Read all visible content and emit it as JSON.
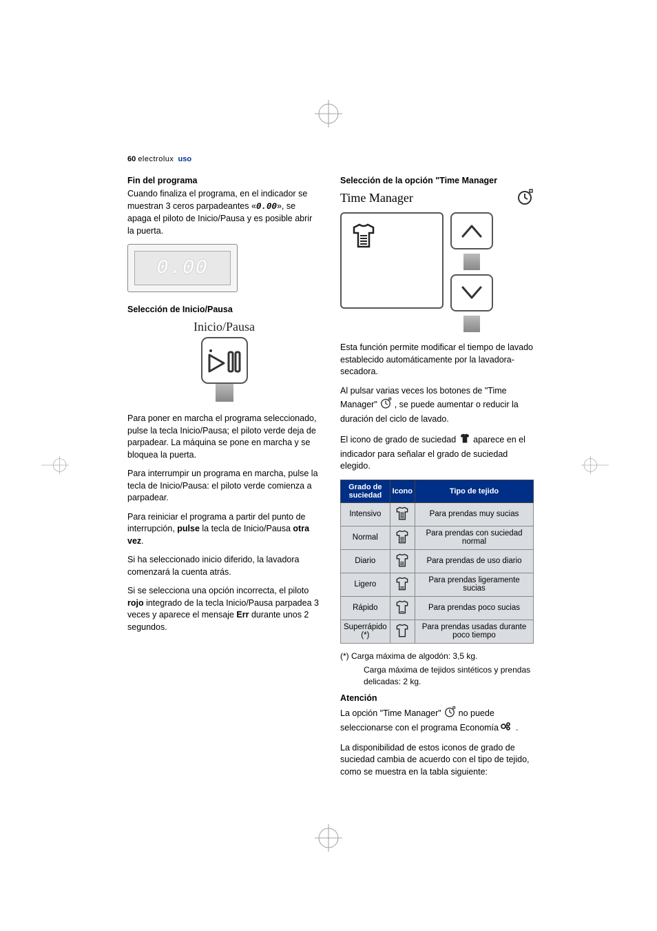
{
  "header": {
    "page_num": "60",
    "brand": "electrolux",
    "section": "uso"
  },
  "left": {
    "fin_title": "Fin del programa",
    "fin_p1_a": "Cuando finaliza el programa, en el indicador se muestran 3 ceros parpadeantes «",
    "fin_zero": "0.00",
    "fin_p1_b": "», se apaga el piloto de Inicio/Pausa y es posible abrir la puerta.",
    "display_value": "0.00",
    "sel_ip_title": "Selección de Inicio/Pausa",
    "ip_label": "Inicio/Pausa",
    "p2": "Para poner en marcha el programa seleccionado, pulse la tecla Inicio/Pausa; el piloto verde deja de parpadear. La máquina se pone en marcha y se bloquea la puerta.",
    "p3": "Para interrumpir un programa en marcha, pulse la tecla de Inicio/Pausa: el piloto verde comienza a parpadear.",
    "p4_a": "Para reiniciar el programa a partir del punto de interrupción, ",
    "p4_b": "pulse",
    "p4_c": " la tecla de Inicio/Pausa ",
    "p4_d": "otra vez",
    "p4_e": ".",
    "p5": "Si ha seleccionado inicio diferido, la lavadora comenzará la cuenta atrás.",
    "p6_a": "Si se selecciona una opción incorrecta, el piloto ",
    "p6_b": "rojo",
    "p6_c": " integrado de la tecla Inicio/Pausa parpadea 3 veces y aparece el mensaje ",
    "p6_d": "Err",
    "p6_e": " durante unos 2 segundos."
  },
  "right": {
    "tm_sel_title": "Selección de la opción \"Time Manager",
    "tm_label": "Time Manager",
    "tm_p1": "Esta función permite modificar el tiempo de lavado establecido automáticamente por la lavadora-secadora.",
    "tm_p2_a": "Al pulsar varias veces los botones de \"Time Manager\" ",
    "tm_p2_b": " , se puede aumentar o reducir la duración del ciclo de lavado.",
    "tm_p3_a": "El icono de grado de suciedad ",
    "tm_p3_b": " aparece en el indicador para señalar el grado de suciedad elegido.",
    "table": {
      "headers": {
        "c1": "Grado de suciedad",
        "c2": "Icono",
        "c3": "Tipo de tejido"
      },
      "rows": [
        {
          "level": "Intensivo",
          "bars": 5,
          "desc": "Para prendas muy sucias"
        },
        {
          "level": "Normal",
          "bars": 4,
          "desc": "Para prendas con suciedad normal"
        },
        {
          "level": "Diario",
          "bars": 3,
          "desc": "Para prendas de uso diario"
        },
        {
          "level": "Ligero",
          "bars": 2,
          "desc": "Para prendas ligeramente sucias"
        },
        {
          "level": "Rápido",
          "bars": 1,
          "desc": "Para prendas poco sucias"
        },
        {
          "level": "Superrápido (*)",
          "bars": 0,
          "desc": "Para prendas usadas durante poco tiempo"
        }
      ]
    },
    "foot1": "(*)  Carga máxima de algodón: 3,5 kg.",
    "foot2": "Carga máxima de tejidos sintéticos y prendas delicadas: 2 kg.",
    "att_title": "Atención",
    "att_p_a": "La opción \"Time Manager\" ",
    "att_p_b": " no puede seleccionarse con el programa Economía ",
    "att_p_c": " .",
    "att_p2": "La disponibilidad de estos iconos de grado de suciedad cambia de acuerdo con el tipo de tejido, como se muestra en la tabla siguiente:"
  },
  "colors": {
    "brand_blue": "#002f87",
    "table_bg": "#d9dce0"
  }
}
